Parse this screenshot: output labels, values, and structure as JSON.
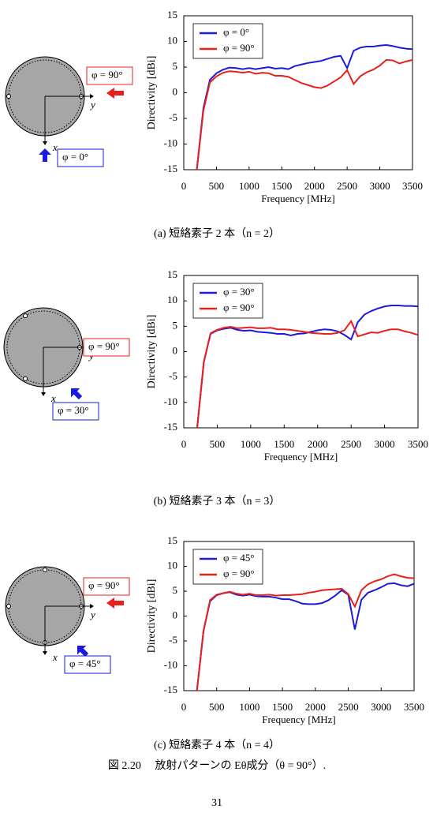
{
  "chart_data": [
    {
      "type": "line",
      "xlabel": "Frequency [MHz]",
      "ylabel": "Directivity [dBi]",
      "x": [
        200,
        300,
        400,
        500,
        600,
        700,
        800,
        900,
        1000,
        1100,
        1200,
        1300,
        1400,
        1500,
        1600,
        1700,
        1800,
        1900,
        2000,
        2100,
        2200,
        2300,
        2400,
        2500,
        2600,
        2700,
        2800,
        2900,
        3000,
        3100,
        3200,
        3300,
        3400,
        3500
      ],
      "series": [
        {
          "name": "φ = 0°",
          "color": "#1a1adc",
          "values": [
            -15,
            -3,
            2.5,
            3.8,
            4.5,
            4.9,
            4.8,
            4.6,
            4.8,
            4.6,
            4.8,
            5,
            4.7,
            4.8,
            4.6,
            5.2,
            5.5,
            5.8,
            6,
            6.2,
            6.6,
            7,
            7.2,
            4.8,
            8.2,
            8.8,
            9,
            9,
            9.2,
            9.3,
            9.1,
            8.8,
            8.6,
            8.5
          ]
        },
        {
          "name": "φ = 90°",
          "color": "#e8201c",
          "values": [
            -15,
            -3.5,
            2,
            3.2,
            3.9,
            4.2,
            4.1,
            3.9,
            4.1,
            3.7,
            3.9,
            3.8,
            3.3,
            3.3,
            3.1,
            2.5,
            1.9,
            1.5,
            1.1,
            0.9,
            1.4,
            2.2,
            3,
            4.4,
            1.7,
            3.2,
            4,
            4.5,
            5.3,
            6.4,
            6.3,
            5.7,
            6.1,
            6.4
          ]
        }
      ],
      "xlim": [
        0,
        3500
      ],
      "xticks": [
        0,
        500,
        1000,
        1500,
        2000,
        2500,
        3000,
        3500
      ],
      "ylim": [
        -15,
        15
      ],
      "yticks": [
        -15,
        -10,
        -5,
        0,
        5,
        10,
        15
      ],
      "legend": "upper left"
    },
    {
      "type": "line",
      "xlabel": "Frequency [MHz]",
      "ylabel": "Directivity [dBi]",
      "x": [
        200,
        300,
        400,
        500,
        600,
        700,
        800,
        900,
        1000,
        1100,
        1200,
        1300,
        1400,
        1500,
        1600,
        1700,
        1800,
        1900,
        2000,
        2100,
        2200,
        2300,
        2400,
        2500,
        2600,
        2700,
        2800,
        2900,
        3000,
        3100,
        3200,
        3300,
        3400,
        3500
      ],
      "series": [
        {
          "name": "φ = 30°",
          "color": "#1a1adc",
          "values": [
            -15,
            -2,
            3.5,
            4.2,
            4.5,
            4.7,
            4.3,
            4.1,
            4.2,
            3.9,
            3.8,
            3.7,
            3.5,
            3.5,
            3.2,
            3.5,
            3.6,
            3.9,
            4.2,
            4.4,
            4.3,
            4,
            3.3,
            2.4,
            5.8,
            7.3,
            8,
            8.5,
            8.9,
            9.1,
            9.1,
            9,
            9,
            8.9
          ]
        },
        {
          "name": "φ = 90°",
          "color": "#e8201c",
          "values": [
            -15,
            -2,
            3.6,
            4.3,
            4.7,
            4.9,
            4.6,
            4.7,
            4.8,
            4.6,
            4.6,
            4.7,
            4.4,
            4.4,
            4.3,
            4.1,
            3.9,
            3.7,
            3.6,
            3.5,
            3.5,
            3.7,
            4.2,
            6,
            3,
            3.4,
            3.8,
            3.7,
            4.1,
            4.4,
            4.4,
            4,
            3.7,
            3.3
          ]
        }
      ],
      "xlim": [
        0,
        3500
      ],
      "xticks": [
        0,
        500,
        1000,
        1500,
        2000,
        2500,
        3000,
        3500
      ],
      "ylim": [
        -15,
        15
      ],
      "yticks": [
        -15,
        -10,
        -5,
        0,
        5,
        10,
        15
      ],
      "legend": "upper left"
    },
    {
      "type": "line",
      "xlabel": "Frequency [MHz]",
      "ylabel": "Directivity [dBi]",
      "x": [
        200,
        300,
        400,
        500,
        600,
        700,
        800,
        900,
        1000,
        1100,
        1200,
        1300,
        1400,
        1500,
        1600,
        1700,
        1800,
        1900,
        2000,
        2100,
        2200,
        2300,
        2400,
        2500,
        2600,
        2700,
        2800,
        2900,
        3000,
        3100,
        3200,
        3300,
        3400,
        3500
      ],
      "series": [
        {
          "name": "φ = 45°",
          "color": "#1a1adc",
          "values": [
            -15,
            -3,
            3,
            4.2,
            4.6,
            4.8,
            4.3,
            4.1,
            4.3,
            4,
            3.9,
            3.9,
            3.7,
            3.4,
            3.4,
            3,
            2.5,
            2.4,
            2.4,
            2.6,
            3.2,
            4.1,
            5.2,
            4.3,
            -2.7,
            3.3,
            4.7,
            5.2,
            5.8,
            6.5,
            6.6,
            6.2,
            6,
            6.5
          ]
        },
        {
          "name": "φ = 90°",
          "color": "#e8201c",
          "values": [
            -15,
            -3,
            3.2,
            4.3,
            4.6,
            4.9,
            4.5,
            4.3,
            4.5,
            4.2,
            4.2,
            4.3,
            4.1,
            4.2,
            4.2,
            4.3,
            4.4,
            4.7,
            4.9,
            5.2,
            5.3,
            5.4,
            5.5,
            4.4,
            1.9,
            5.2,
            6.4,
            7,
            7.4,
            8,
            8.4,
            8,
            7.7,
            7.6
          ]
        }
      ],
      "xlim": [
        0,
        3500
      ],
      "xticks": [
        0,
        500,
        1000,
        1500,
        2000,
        2500,
        3000,
        3500
      ],
      "ylim": [
        -15,
        15
      ],
      "yticks": [
        -15,
        -10,
        -5,
        0,
        5,
        10,
        15
      ],
      "legend": "upper left"
    }
  ],
  "diagrams": [
    {
      "red_label": "φ = 90°",
      "blue_label": "φ = 0°",
      "axis_x": "x",
      "axis_y": "y"
    },
    {
      "red_label": "φ = 90°",
      "blue_label": "φ = 30°",
      "axis_x": "x",
      "axis_y": "y"
    },
    {
      "red_label": "φ = 90°",
      "blue_label": "φ = 45°",
      "axis_x": "x",
      "axis_y": "y"
    }
  ],
  "captions": [
    "(a)  短絡素子 2 本（n = 2）",
    "(b)  短絡素子 3 本（n = 3）",
    "(c)  短絡素子 4 本（n = 4）"
  ],
  "figure_caption": "図 2.20　 放射パターンの Eθ成分（θ = 90°）.",
  "page_number": "31"
}
